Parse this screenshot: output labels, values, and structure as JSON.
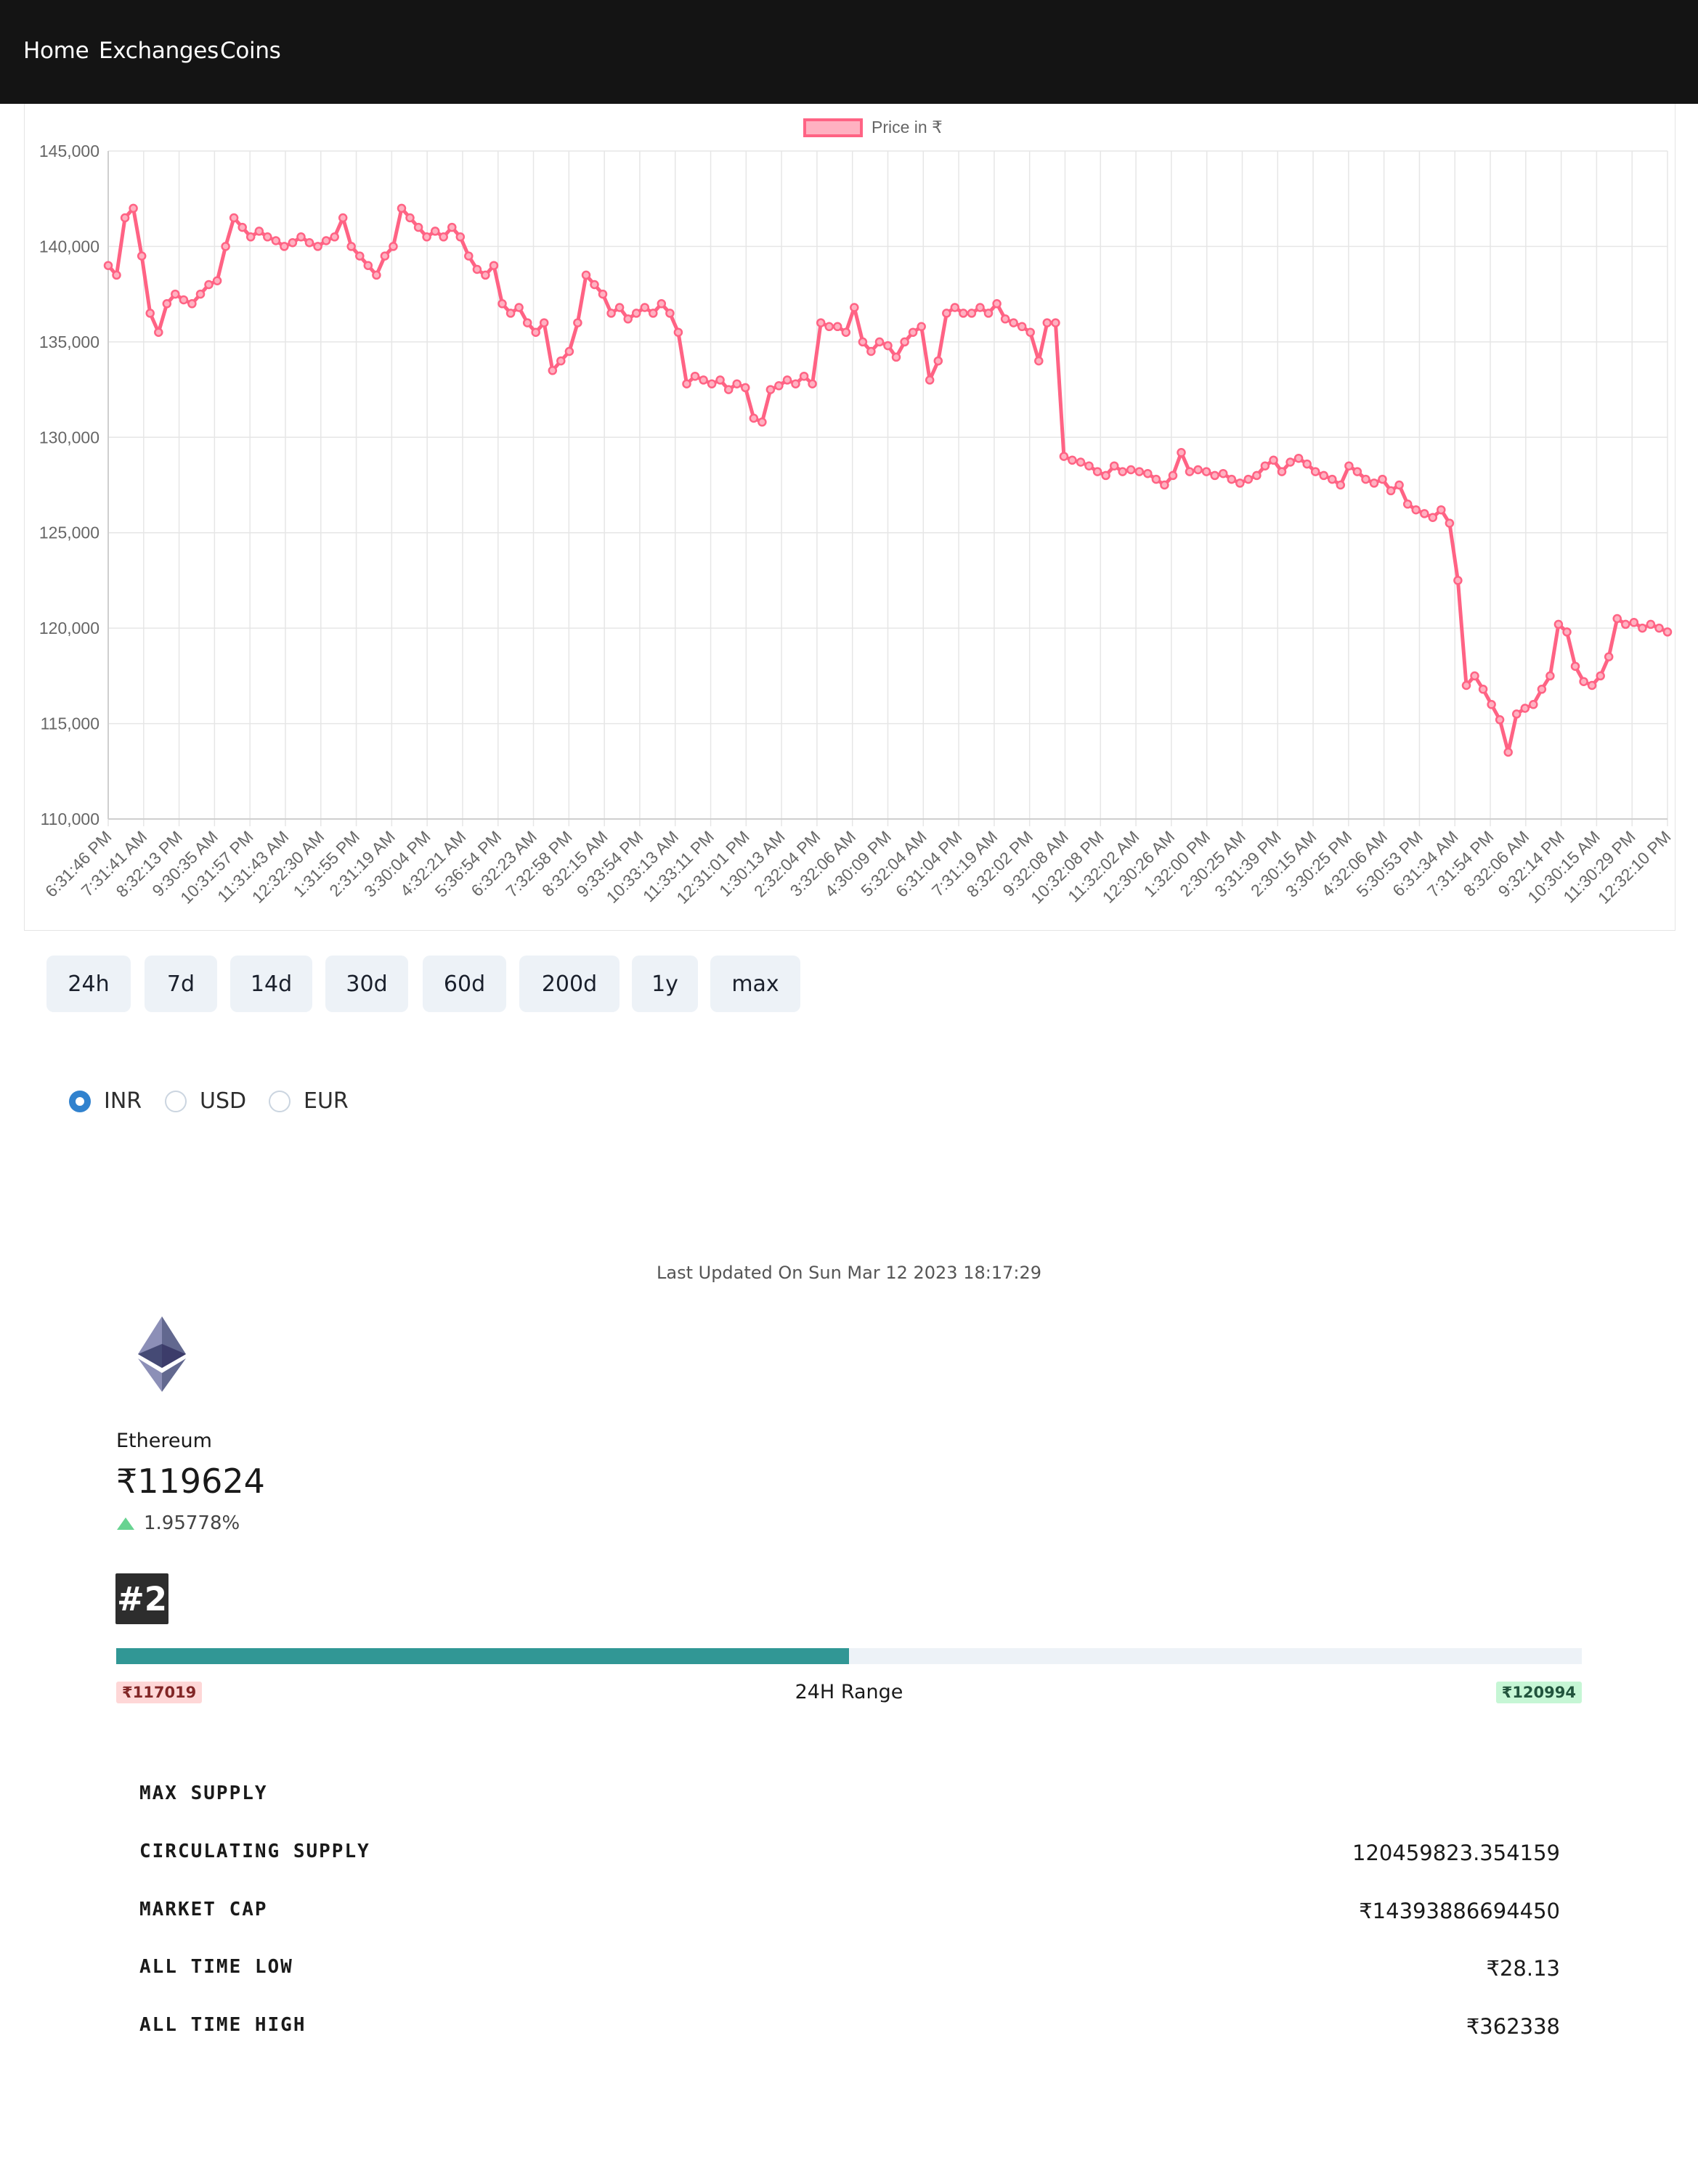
{
  "nav": {
    "home": "Home",
    "exchanges": "Exchanges",
    "coins": "Coins"
  },
  "chart_data": {
    "type": "line",
    "legend_label": "Price in ₹",
    "legend_position": "top-center",
    "line_color": "#ff6384",
    "ylim": [
      110000,
      145000
    ],
    "y_ticks": [
      "110,000",
      "115,000",
      "120,000",
      "125,000",
      "130,000",
      "135,000",
      "140,000",
      "145,000"
    ],
    "x_tick_labels": [
      "6:31:46 PM",
      "7:31:41 AM",
      "8:32:13 PM",
      "9:30:35 AM",
      "10:31:57 PM",
      "11:31:43 AM",
      "12:32:30 AM",
      "1:31:55 PM",
      "2:31:19 AM",
      "3:30:04 PM",
      "4:32:21 AM",
      "5:36:54 PM",
      "6:32:23 AM",
      "7:32:58 PM",
      "8:32:15 AM",
      "9:33:54 PM",
      "10:33:13 AM",
      "11:33:11 PM",
      "12:31:01 PM",
      "1:30:13 AM",
      "2:32:04 PM",
      "3:32:06 AM",
      "4:30:09 PM",
      "5:32:04 AM",
      "6:31:04 PM",
      "7:31:19 AM",
      "8:32:02 PM",
      "9:32:08 AM",
      "10:32:08 PM",
      "11:32:02 AM",
      "12:30:26 AM",
      "1:32:00 PM",
      "2:30:25 AM",
      "3:31:39 PM",
      "2:30:15 AM",
      "3:30:25 PM",
      "4:32:06 AM",
      "5:30:53 PM",
      "6:31:34 AM",
      "7:31:54 PM",
      "8:32:06 AM",
      "9:32:14 PM",
      "10:30:15 AM",
      "11:30:29 PM",
      "12:32:10 PM"
    ],
    "values": [
      139000,
      138500,
      141500,
      142000,
      139500,
      136500,
      135500,
      137000,
      137500,
      137200,
      137000,
      137500,
      138000,
      138200,
      140000,
      141500,
      141000,
      140500,
      140800,
      140500,
      140300,
      140000,
      140200,
      140500,
      140200,
      140000,
      140300,
      140500,
      141500,
      140000,
      139500,
      139000,
      138500,
      139500,
      140000,
      142000,
      141500,
      141000,
      140500,
      140800,
      140500,
      141000,
      140500,
      139500,
      138800,
      138500,
      139000,
      137000,
      136500,
      136800,
      136000,
      135500,
      136000,
      133500,
      134000,
      134500,
      136000,
      138500,
      138000,
      137500,
      136500,
      136800,
      136200,
      136500,
      136800,
      136500,
      137000,
      136500,
      135500,
      132800,
      133200,
      133000,
      132800,
      133000,
      132500,
      132800,
      132600,
      131000,
      130800,
      132500,
      132700,
      133000,
      132800,
      133200,
      132800,
      136000,
      135800,
      135800,
      135500,
      136800,
      135000,
      134500,
      135000,
      134800,
      134200,
      135000,
      135500,
      135800,
      133000,
      134000,
      136500,
      136800,
      136500,
      136500,
      136800,
      136500,
      137000,
      136200,
      136000,
      135800,
      135500,
      134000,
      136000,
      136000,
      129000,
      128800,
      128700,
      128500,
      128200,
      128000,
      128500,
      128200,
      128300,
      128200,
      128100,
      127800,
      127500,
      128000,
      129200,
      128200,
      128300,
      128200,
      128000,
      128100,
      127800,
      127600,
      127800,
      128000,
      128500,
      128800,
      128200,
      128700,
      128900,
      128600,
      128200,
      128000,
      127800,
      127500,
      128500,
      128200,
      127800,
      127600,
      127800,
      127200,
      127500,
      126500,
      126200,
      126000,
      125800,
      126200,
      125500,
      122500,
      117000,
      117500,
      116800,
      116000,
      115200,
      113500,
      115500,
      115800,
      116000,
      116800,
      117500,
      120200,
      119800,
      118000,
      117200,
      117000,
      117500,
      118500,
      120500,
      120200,
      120300,
      120000,
      120200,
      120000,
      119800
    ]
  },
  "timeframes": [
    "24h",
    "7d",
    "14d",
    "30d",
    "60d",
    "200d",
    "1y",
    "max"
  ],
  "currencies": {
    "inr": "INR",
    "usd": "USD",
    "eur": "EUR",
    "selected": "INR"
  },
  "last_updated": "Last Updated On Sun Mar 12 2023 18:17:29",
  "coin": {
    "name": "Ethereum",
    "price": "₹119624",
    "change": "1.95778%",
    "rank": "#2",
    "range_low": "₹117019",
    "range_label": "24H Range",
    "range_high": "₹120994",
    "range_fraction": 0.5
  },
  "stats": {
    "max_supply_label": "Max Supply",
    "max_supply_value": "",
    "circulating_supply_label": "Circulating Supply",
    "circulating_supply_value": "120459823.354159",
    "market_cap_label": "Market Cap",
    "market_cap_value": "₹14393886694450",
    "all_time_low_label": "All Time Low",
    "all_time_low_value": "₹28.13",
    "all_time_high_label": "All Time High",
    "all_time_high_value": "₹362338"
  },
  "colors": {
    "accent": "#319795",
    "navbar": "#141414",
    "radio_selected": "#3182ce",
    "change_up": "#68d391"
  }
}
